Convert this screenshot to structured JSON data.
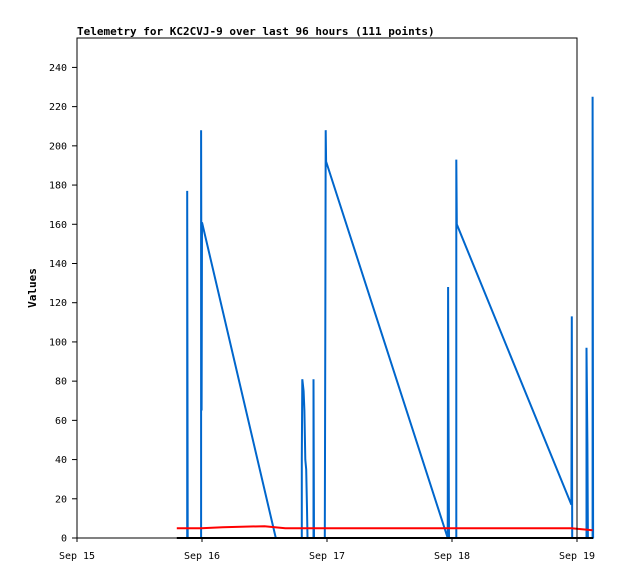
{
  "chart_data": {
    "type": "line",
    "title": "Telemetry for KC2CVJ-9 over last 96 hours (111 points)",
    "xlabel": "",
    "ylabel": "Values",
    "ylim": [
      0,
      255
    ],
    "yticks": [
      0,
      20,
      40,
      60,
      80,
      100,
      120,
      140,
      160,
      180,
      200,
      220,
      240
    ],
    "xlim": [
      "2016-09-15T00:00",
      "2016-09-19T00:00"
    ],
    "xticks": [
      {
        "x": "2016-09-15T00:00",
        "label": "Sep 15"
      },
      {
        "x": "2016-09-16T00:00",
        "label": "Sep 16"
      },
      {
        "x": "2016-09-17T00:00",
        "label": "Sep 17"
      },
      {
        "x": "2016-09-18T00:00",
        "label": "Sep 18"
      },
      {
        "x": "2016-09-19T00:00",
        "label": "Sep 19"
      }
    ],
    "grid": false,
    "legend": "none",
    "series": [
      {
        "color": "#0066cc",
        "points": [
          [
            "2016-09-15T21:10",
            0
          ],
          [
            "2016-09-15T21:10",
            177
          ],
          [
            "2016-09-15T21:15",
            0
          ],
          [
            "2016-09-15T23:50",
            0
          ],
          [
            "2016-09-15T23:50",
            208
          ],
          [
            "2016-09-15T23:55",
            65
          ],
          [
            "2016-09-16T00:00",
            161
          ],
          [
            "2016-09-16T14:10",
            0
          ],
          [
            "2016-09-16T19:10",
            0
          ],
          [
            "2016-09-16T19:10",
            40
          ],
          [
            "2016-09-16T19:15",
            81
          ],
          [
            "2016-09-16T19:30",
            75
          ],
          [
            "2016-09-16T19:40",
            65
          ],
          [
            "2016-09-16T19:50",
            40
          ],
          [
            "2016-09-16T20:00",
            35
          ],
          [
            "2016-09-16T20:10",
            15
          ],
          [
            "2016-09-16T20:15",
            0
          ],
          [
            "2016-09-16T21:25",
            0
          ],
          [
            "2016-09-16T21:25",
            81
          ],
          [
            "2016-09-16T21:30",
            0
          ],
          [
            "2016-09-16T23:35",
            0
          ],
          [
            "2016-09-16T23:40",
            105
          ],
          [
            "2016-09-16T23:45",
            208
          ],
          [
            "2016-09-16T23:50",
            192
          ],
          [
            "2016-09-17T23:10",
            0
          ],
          [
            "2016-09-17T23:15",
            128
          ],
          [
            "2016-09-17T23:20",
            65
          ],
          [
            "2016-09-17T23:25",
            0
          ],
          [
            "2016-09-18T00:50",
            0
          ],
          [
            "2016-09-18T00:50",
            193
          ],
          [
            "2016-09-18T00:55",
            160
          ],
          [
            "2016-09-18T22:55",
            17
          ],
          [
            "2016-09-18T23:00",
            113
          ],
          [
            "2016-09-18T23:05",
            0
          ],
          [
            "2016-09-19T01:50",
            0
          ],
          [
            "2016-09-19T01:50",
            97
          ],
          [
            "2016-09-19T02:00",
            48
          ],
          [
            "2016-09-19T02:05",
            0
          ],
          [
            "2016-09-19T03:00",
            0
          ],
          [
            "2016-09-19T03:00",
            225
          ],
          [
            "2016-09-19T03:05",
            0
          ]
        ]
      },
      {
        "color": "#ff0000",
        "points": [
          [
            "2016-09-15T19:10",
            5
          ],
          [
            "2016-09-15T23:50",
            5
          ],
          [
            "2016-09-16T04:00",
            5.5
          ],
          [
            "2016-09-16T12:00",
            6
          ],
          [
            "2016-09-16T16:00",
            5
          ],
          [
            "2016-09-17T23:30",
            5
          ],
          [
            "2016-09-18T22:55",
            5
          ],
          [
            "2016-09-19T03:00",
            4
          ]
        ]
      },
      {
        "color": "#000000",
        "points": [
          [
            "2016-09-15T19:10",
            0
          ],
          [
            "2016-09-19T03:05",
            0
          ]
        ]
      }
    ]
  }
}
